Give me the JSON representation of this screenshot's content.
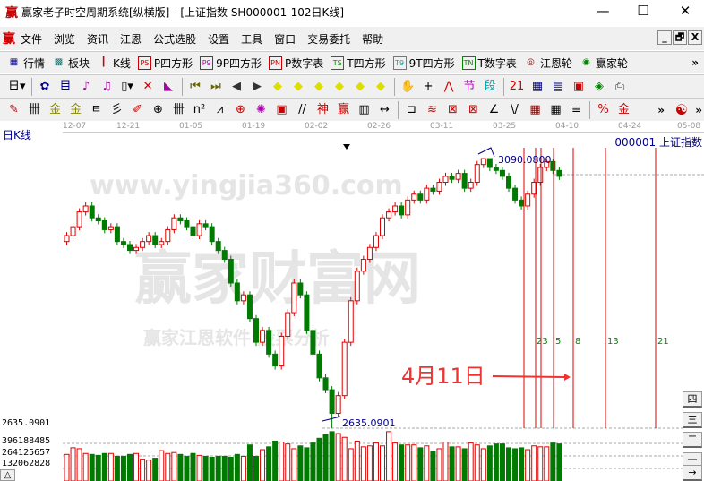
{
  "window": {
    "logo": "赢",
    "title": "赢家老子时空周期系统[纵横版] - [上证指数  SH000001-102日K线]",
    "minimize": "—",
    "maximize": "☐",
    "close": "✕"
  },
  "menu": {
    "logo": "赢",
    "items": [
      "文件",
      "浏览",
      "资讯",
      "江恩",
      "公式选股",
      "设置",
      "工具",
      "窗口",
      "交易委托",
      "帮助"
    ],
    "mdi": [
      "_",
      "🗗",
      "X"
    ]
  },
  "toolbar1": {
    "items": [
      {
        "icon": "grid-icon",
        "label": "行情",
        "glyph": "▦",
        "color": "#00008b"
      },
      {
        "icon": "blocks-icon",
        "label": "板块",
        "glyph": "▩",
        "color": "#008080"
      },
      {
        "icon": "candles-icon",
        "label": "K线",
        "glyph": "┃",
        "color": "#c00"
      },
      {
        "icon": "ps-icon",
        "label": "P四方形",
        "glyph": "PS",
        "color": "#c00"
      },
      {
        "icon": "p9-icon",
        "label": "9P四方形",
        "glyph": "P9",
        "color": "#a0a"
      },
      {
        "icon": "pn-icon",
        "label": "P数字表",
        "glyph": "PN",
        "color": "#c00"
      },
      {
        "icon": "ts-icon",
        "label": "T四方形",
        "glyph": "TS",
        "color": "#080"
      },
      {
        "icon": "t9-icon",
        "label": "9T四方形",
        "glyph": "T9",
        "color": "#0aa"
      },
      {
        "icon": "tn-icon",
        "label": "T数字表",
        "glyph": "TN",
        "color": "#080"
      },
      {
        "icon": "gann-wheel-icon",
        "label": "江恩轮",
        "glyph": "◎",
        "color": "#800"
      },
      {
        "icon": "winner-wheel-icon",
        "label": "赢家轮",
        "glyph": "◉",
        "color": "#080"
      }
    ],
    "more": "»"
  },
  "toolbar2": {
    "glyphs": [
      [
        "day-period-icon",
        "日▾",
        "#000"
      ],
      [
        "window-icon",
        "✿",
        "#00008b"
      ],
      [
        "list-icon",
        "目",
        "#00008b"
      ],
      [
        "step3-icon",
        "♪",
        "#a0a"
      ],
      [
        "step9-icon",
        "♫",
        "#a0a"
      ],
      [
        "candle-type-icon",
        "▯▾",
        "#000"
      ],
      [
        "cycle-icon",
        "✕",
        "#c00"
      ],
      [
        "flag-icon",
        "◣",
        "#a0a"
      ],
      [
        "first-icon",
        "⏮",
        "#660"
      ],
      [
        "last-icon",
        "⏭",
        "#660"
      ],
      [
        "prev-icon",
        "◀",
        "#333"
      ],
      [
        "next-icon",
        "▶",
        "#333"
      ],
      [
        "diamond-left-icon",
        "◆",
        "#dd0"
      ],
      [
        "diamond-right-icon",
        "◆",
        "#dd0"
      ],
      [
        "diamond-h-icon",
        "◆",
        "#dd0"
      ],
      [
        "diamond-x-icon",
        "◆",
        "#dd0"
      ],
      [
        "diamond-v-icon",
        "◆",
        "#dd0"
      ],
      [
        "diamond-plus-icon",
        "◆",
        "#dd0"
      ],
      [
        "hand-icon",
        "✋",
        "#333"
      ],
      [
        "crosshair-icon",
        "+",
        "#000"
      ],
      [
        "line-icon",
        "⋀",
        "#c00"
      ],
      [
        "node-icon",
        "节",
        "#a0a"
      ],
      [
        "segment-icon",
        "段",
        "#0aa"
      ],
      [
        "calendar-icon",
        "21",
        "#c00"
      ],
      [
        "calculator-icon",
        "▦",
        "#008"
      ],
      [
        "notes-icon",
        "▤",
        "#008"
      ],
      [
        "save-icon",
        "▣",
        "#c00"
      ],
      [
        "stack-icon",
        "◈",
        "#080"
      ],
      [
        "print-icon",
        "⎙",
        "#333"
      ]
    ]
  },
  "toolbar3": {
    "glyphs": [
      [
        "pen-icon",
        "✎",
        "#c00"
      ],
      [
        "hash-icon",
        "卌",
        "#000"
      ],
      [
        "gold1-icon",
        "金",
        "#880"
      ],
      [
        "gold2-icon",
        "金",
        "#880"
      ],
      [
        "f-icon",
        "ㅌ",
        "#000"
      ],
      [
        "spiral-icon",
        "彡",
        "#000"
      ],
      [
        "brush-icon",
        "✐",
        "#c00"
      ],
      [
        "circle-grid-icon",
        "⊕",
        "#000"
      ],
      [
        "hash2-icon",
        "卌",
        "#000"
      ],
      [
        "n2-icon",
        "n²",
        "#000"
      ],
      [
        "fan-icon",
        "⩘",
        "#000"
      ],
      [
        "target-icon",
        "⊕",
        "#c00"
      ],
      [
        "star-icon",
        "✺",
        "#a0a"
      ],
      [
        "box-icon",
        "▣",
        "#c00"
      ],
      [
        "slash-icon",
        "//",
        "#000"
      ],
      [
        "shen-icon",
        "神",
        "#c00"
      ],
      [
        "ying-icon",
        "赢",
        "#c00"
      ],
      [
        "ruler-icon",
        "▥",
        "#000"
      ],
      [
        "width-icon",
        "↔",
        "#000"
      ],
      [
        "bracket-icon",
        "⊐",
        "#000"
      ],
      [
        "fan-lines-icon",
        "≋",
        "#c00"
      ],
      [
        "square-icon",
        "⊠",
        "#c00"
      ],
      [
        "grid-fan-icon",
        "⊠",
        "#c00"
      ],
      [
        "angle-icon",
        "∠",
        "#000"
      ],
      [
        "vv-icon",
        "\\/",
        "#000"
      ],
      [
        "grid2-icon",
        "▦",
        "#800"
      ],
      [
        "grid3-icon",
        "▦",
        "#000"
      ],
      [
        "hatch-icon",
        "≡",
        "#000"
      ],
      [
        "percent-icon",
        "%",
        "#c00"
      ],
      [
        "jin-icon",
        "金",
        "#c00"
      ]
    ],
    "more": "»",
    "yinyang": "☯"
  },
  "chart": {
    "title": "日K线",
    "index": "000001  上证指数",
    "dates": [
      "12-07",
      "12-21",
      "01-05",
      "01-19",
      "02-02",
      "02-26",
      "03-11",
      "03-25",
      "04-10",
      "04-24",
      "05-08"
    ],
    "high_label": "3090.0800",
    "low_label": "2635.0901",
    "axis_low": "2635.0901",
    "volume_ticks": [
      "396188485",
      "264125657",
      "132062828"
    ],
    "cycle_labels": [
      "23",
      "5",
      "8",
      "13",
      "21"
    ],
    "annotation": "4月11日",
    "up_color": "#e00000",
    "down_color": "#007a00",
    "cycle_line_color": "#e00000",
    "side_buttons": [
      "四",
      "三",
      "二",
      "一",
      "→"
    ],
    "left_button": "△",
    "watermark": [
      "赢家财富网",
      "赢家江恩软件·股票分析",
      "www.yingjia360.com"
    ]
  },
  "chart_data": {
    "type": "candlestick",
    "price_range": [
      2635.0901,
      3090.08
    ],
    "closes": [
      2960,
      2975,
      3000,
      3010,
      2990,
      2985,
      2970,
      2975,
      2950,
      2945,
      2935,
      2940,
      2950,
      2960,
      2945,
      2950,
      2970,
      2990,
      2985,
      2975,
      2960,
      2980,
      2975,
      2950,
      2935,
      2920,
      2880,
      2850,
      2860,
      2820,
      2780,
      2800,
      2760,
      2740,
      2790,
      2830,
      2880,
      2860,
      2800,
      2760,
      2720,
      2700,
      2660,
      2690,
      2780,
      2850,
      2900,
      2920,
      2940,
      2960,
      2990,
      3000,
      3010,
      2995,
      3020,
      3030,
      3020,
      3040,
      3035,
      3050,
      3060,
      3055,
      3065,
      3040,
      3050,
      3080,
      3090,
      3075,
      3070,
      3060,
      3040,
      3020,
      3010,
      3030,
      3050,
      3075,
      3085,
      3070,
      3060
    ],
    "volumes": [
      280000000.0,
      350000000.0,
      340000000.0,
      290000000.0,
      280000000.0,
      270000000.0,
      290000000.0,
      290000000.0,
      260000000.0,
      260000000.0,
      280000000.0,
      290000000.0,
      230000000.0,
      220000000.0,
      240000000.0,
      320000000.0,
      290000000.0,
      300000000.0,
      280000000.0,
      260000000.0,
      290000000.0,
      270000000.0,
      260000000.0,
      250000000.0,
      260000000.0,
      260000000.0,
      250000000.0,
      280000000.0,
      260000000.0,
      380000000.0,
      260000000.0,
      330000000.0,
      360000000.0,
      420000000.0,
      410000000.0,
      390000000.0,
      340000000.0,
      370000000.0,
      350000000.0,
      400000000.0,
      450000000.0,
      490000000.0,
      520000000.0,
      500000000.0,
      460000000.0,
      340000000.0,
      420000000.0,
      360000000.0,
      370000000.0,
      400000000.0,
      370000000.0,
      520000000.0,
      400000000.0,
      380000000.0,
      380000000.0,
      380000000.0,
      350000000.0,
      370000000.0,
      310000000.0,
      340000000.0,
      410000000.0,
      360000000.0,
      360000000.0,
      340000000.0,
      400000000.0,
      380000000.0,
      340000000.0,
      370000000.0,
      390000000.0,
      390000000.0,
      350000000.0,
      340000000.0,
      350000000.0,
      330000000.0,
      370000000.0,
      360000000.0,
      360000000.0,
      400000000.0,
      390000000.0
    ]
  }
}
